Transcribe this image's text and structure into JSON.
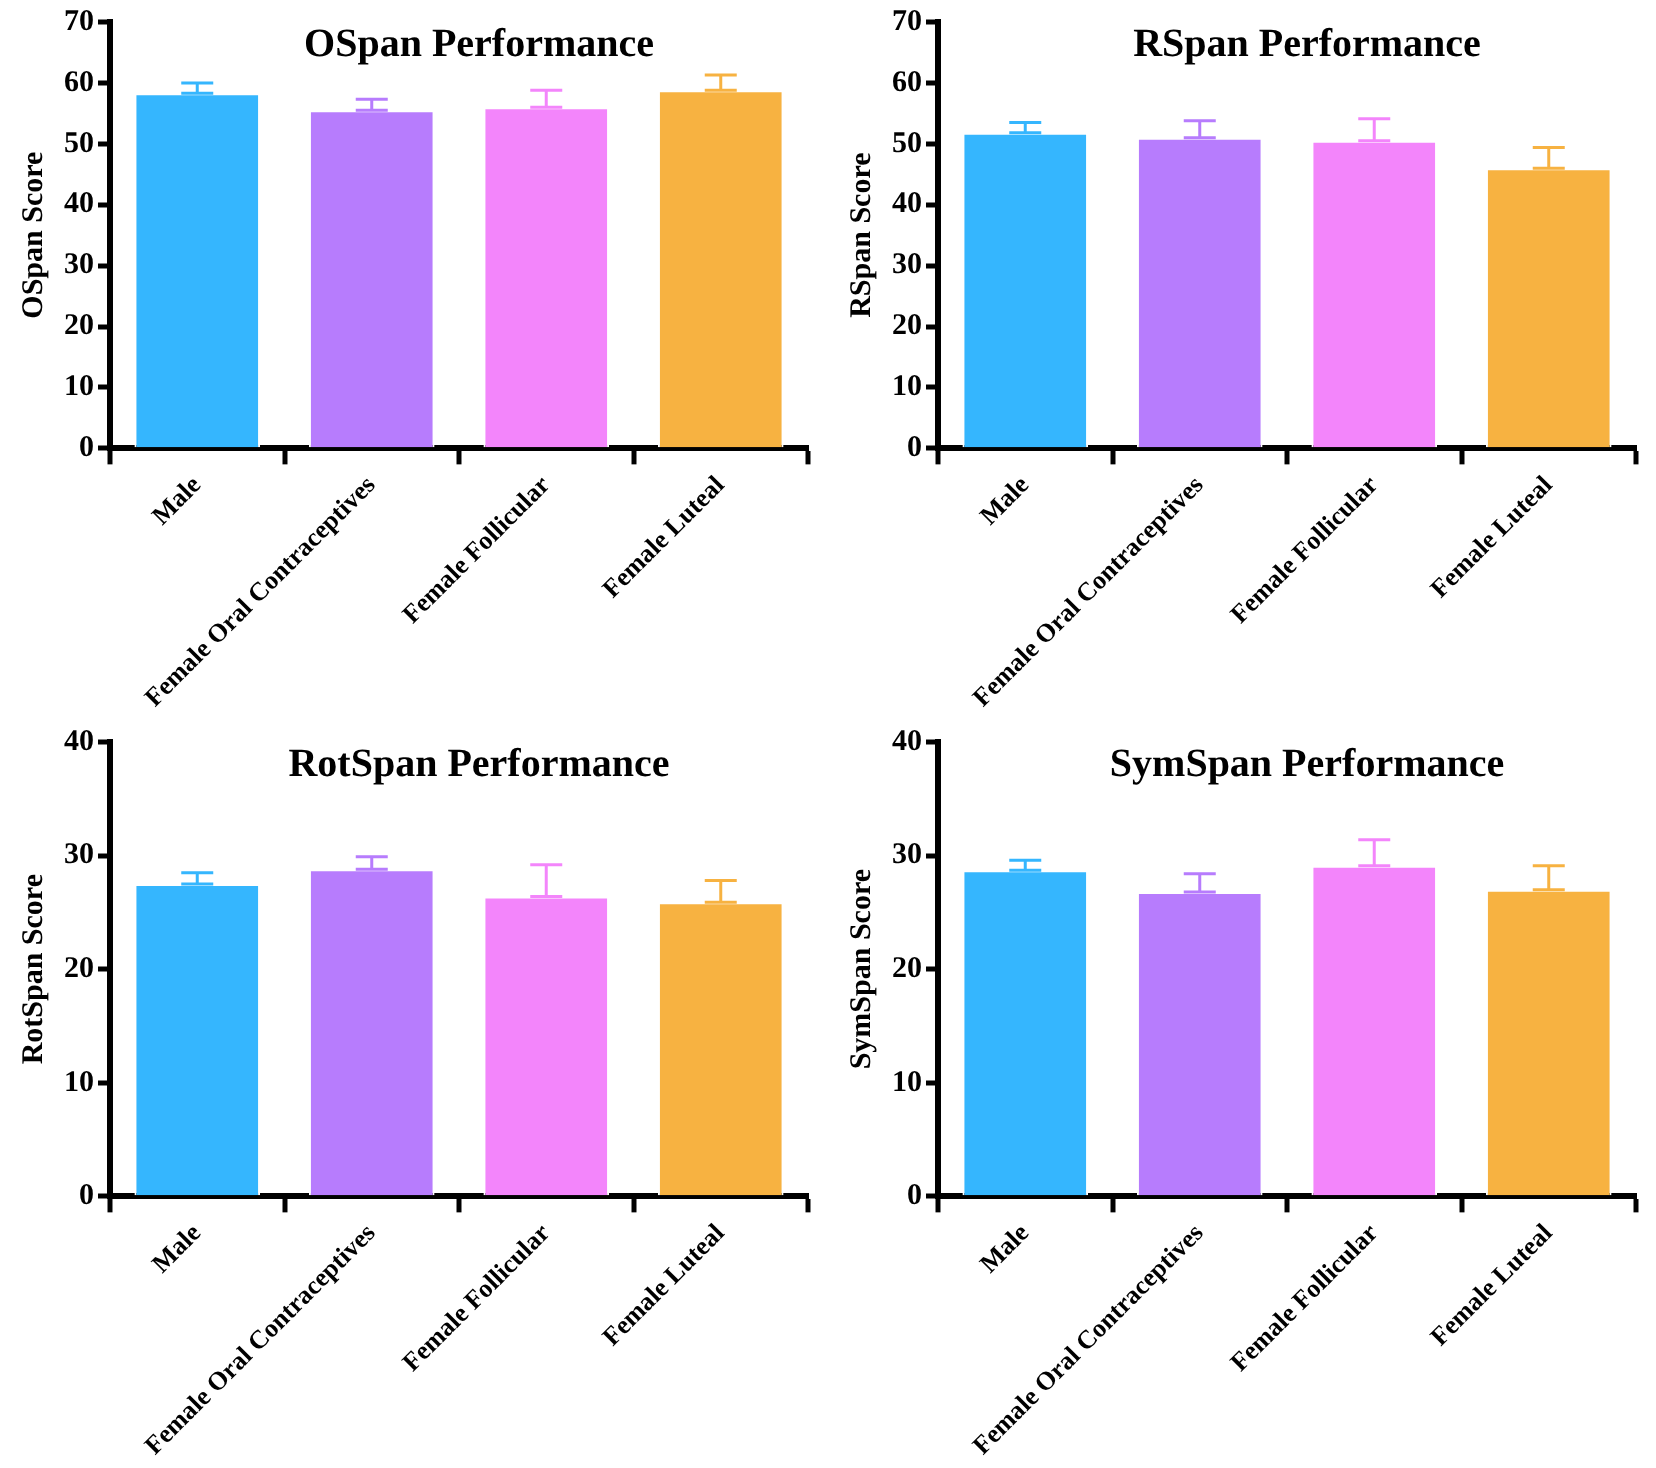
{
  "chart_data": [
    {
      "type": "bar",
      "title": "OSpan Performance",
      "ylabel": "OSpan Score",
      "categories": [
        "Male",
        "Female Oral Contraceptives",
        "Female Follicular",
        "Female Luteal"
      ],
      "values": [
        58.3,
        55.5,
        56,
        58.8
      ],
      "colors": [
        "#35b6fe",
        "#b77cfd",
        "#f385fb",
        "#f7b241"
      ],
      "errors": [
        [
          58.3,
          60
        ],
        [
          55.5,
          57.3
        ],
        [
          56,
          58.8
        ],
        [
          58.8,
          61.3
        ]
      ],
      "ylim": [
        0,
        70
      ],
      "yticks": [
        0,
        10,
        20,
        30,
        40,
        50,
        60,
        70
      ],
      "grid": false,
      "legend": false
    },
    {
      "type": "bar",
      "title": "RSpan Performance",
      "ylabel": "RSpan Score",
      "categories": [
        "Male",
        "Female Oral Contraceptives",
        "Female Follicular",
        "Female Luteal"
      ],
      "values": [
        51.8,
        51,
        50.5,
        46
      ],
      "colors": [
        "#35b6fe",
        "#b77cfd",
        "#f385fb",
        "#f7b241"
      ],
      "errors": [
        [
          51.8,
          53.5
        ],
        [
          51,
          53.8
        ],
        [
          50.5,
          54.1
        ],
        [
          46,
          49.4
        ]
      ],
      "ylim": [
        0,
        70
      ],
      "yticks": [
        0,
        10,
        20,
        30,
        40,
        50,
        60,
        70
      ],
      "grid": false,
      "legend": false
    },
    {
      "type": "bar",
      "title": "RotSpan Performance",
      "ylabel": "RotSpan Score",
      "categories": [
        "Male",
        "Female Oral Contraceptives",
        "Female Follicular",
        "Female Luteal"
      ],
      "values": [
        27.5,
        28.8,
        26.4,
        25.9
      ],
      "colors": [
        "#35b6fe",
        "#b77cfd",
        "#f385fb",
        "#f7b241"
      ],
      "errors": [
        [
          27.5,
          28.5
        ],
        [
          28.8,
          29.9
        ],
        [
          26.4,
          29.2
        ],
        [
          25.9,
          27.8
        ]
      ],
      "ylim": [
        0,
        40
      ],
      "yticks": [
        0,
        10,
        20,
        30,
        40
      ],
      "grid": false,
      "legend": false
    },
    {
      "type": "bar",
      "title": "SymSpan Performance",
      "ylabel": "SymSpan Score",
      "categories": [
        "Male",
        "Female Oral Contraceptives",
        "Female Follicular",
        "Female Luteal"
      ],
      "values": [
        28.7,
        26.8,
        29.1,
        27
      ],
      "colors": [
        "#35b6fe",
        "#b77cfd",
        "#f385fb",
        "#f7b241"
      ],
      "errors": [
        [
          28.7,
          29.6
        ],
        [
          26.8,
          28.4
        ],
        [
          29.1,
          31.4
        ],
        [
          27,
          29.1
        ]
      ],
      "ylim": [
        0,
        40
      ],
      "yticks": [
        0,
        10,
        20,
        30,
        40
      ],
      "grid": false,
      "legend": false
    }
  ]
}
